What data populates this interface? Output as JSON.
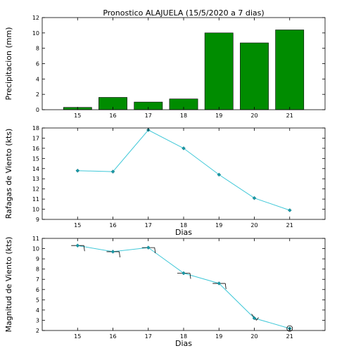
{
  "title": "Pronostico  ALAJUELA (15/5/2020 a 7 dias)",
  "chart_data": [
    {
      "type": "bar",
      "title": "Pronostico  ALAJUELA (15/5/2020 a 7 dias)",
      "ylabel": "Precipitacion (mm)",
      "xlabel": "",
      "categories": [
        "15",
        "16",
        "17",
        "18",
        "19",
        "20",
        "21"
      ],
      "x": [
        15,
        16,
        17,
        18,
        19,
        20,
        21
      ],
      "values": [
        0.3,
        1.6,
        1.0,
        1.4,
        10.0,
        8.7,
        10.4
      ],
      "xlim": [
        14,
        22
      ],
      "ylim": [
        0,
        12
      ],
      "yticks": [
        0,
        2,
        4,
        6,
        8,
        10,
        12
      ],
      "bar_color": "#008c00",
      "grid": false
    },
    {
      "type": "line",
      "ylabel": "Rafagas de Viento (kts)",
      "xlabel": "Dias",
      "x": [
        15,
        16,
        17,
        18,
        19,
        20,
        21
      ],
      "xticks": [
        "15",
        "16",
        "17",
        "18",
        "19",
        "20",
        "21"
      ],
      "values": [
        13.8,
        13.7,
        17.8,
        16.0,
        13.4,
        11.1,
        9.9
      ],
      "xlim": [
        14,
        22
      ],
      "ylim": [
        9,
        18
      ],
      "yticks": [
        9,
        10,
        11,
        12,
        13,
        14,
        15,
        16,
        17,
        18
      ],
      "line_color": "#40c8d8",
      "marker_color": "#1a9aa8",
      "grid": false
    },
    {
      "type": "line",
      "ylabel": "Magnitud de Viento (kts)",
      "xlabel": "Dias",
      "x": [
        15,
        16,
        17,
        18,
        19,
        20,
        21
      ],
      "xticks": [
        "15",
        "16",
        "17",
        "18",
        "19",
        "20",
        "21"
      ],
      "values": [
        10.3,
        9.7,
        10.1,
        7.6,
        6.6,
        3.2,
        2.2
      ],
      "xlim": [
        14,
        22
      ],
      "ylim": [
        2,
        11
      ],
      "yticks": [
        2,
        3,
        4,
        5,
        6,
        7,
        8,
        9,
        10,
        11
      ],
      "line_color": "#40c8d8",
      "marker_color": "#1a9aa8",
      "wind_barbs": true,
      "grid": false
    }
  ]
}
